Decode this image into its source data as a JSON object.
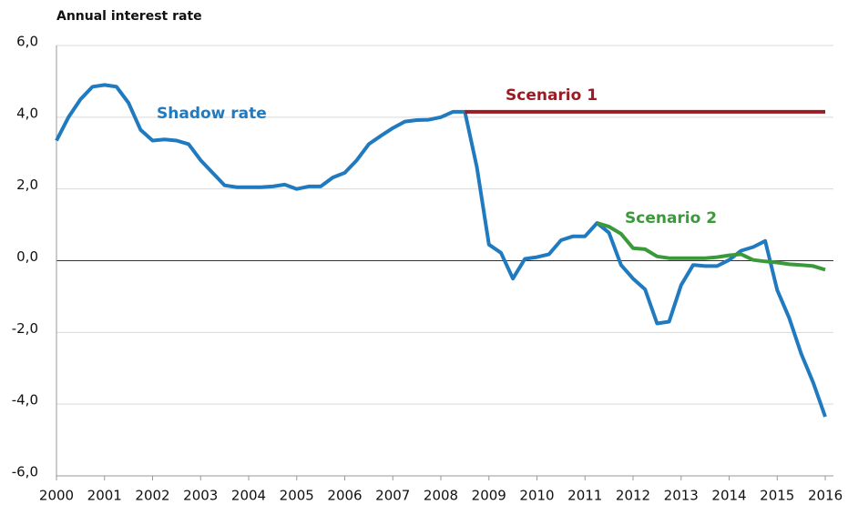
{
  "chart_data": {
    "type": "line",
    "title": "Annual interest rate",
    "x": [
      2000,
      2000.25,
      2000.5,
      2000.75,
      2001,
      2001.25,
      2001.5,
      2001.75,
      2002,
      2002.25,
      2002.5,
      2002.75,
      2003,
      2003.25,
      2003.5,
      2003.75,
      2004,
      2004.25,
      2004.5,
      2004.75,
      2005,
      2005.25,
      2005.5,
      2005.75,
      2006,
      2006.25,
      2006.5,
      2006.75,
      2007,
      2007.25,
      2007.5,
      2007.75,
      2008,
      2008.25,
      2008.5,
      2008.75,
      2009,
      2009.25,
      2009.5,
      2009.75,
      2010,
      2010.25,
      2010.5,
      2010.75,
      2011,
      2011.25,
      2011.5,
      2011.75,
      2012,
      2012.25,
      2012.5,
      2012.75,
      2013,
      2013.25,
      2013.5,
      2013.75,
      2014,
      2014.25,
      2014.5,
      2014.75,
      2015,
      2015.25,
      2015.5,
      2015.75,
      2016
    ],
    "series": [
      {
        "name": "Shadow rate",
        "color": "#1f7ac0",
        "values": [
          3.35,
          4.0,
          4.5,
          4.85,
          4.9,
          4.85,
          4.4,
          3.65,
          3.35,
          3.38,
          3.35,
          3.25,
          2.8,
          2.45,
          2.1,
          2.05,
          2.05,
          2.05,
          2.07,
          2.12,
          2.0,
          2.07,
          2.07,
          2.32,
          2.45,
          2.8,
          3.25,
          3.48,
          3.7,
          3.88,
          3.92,
          3.93,
          4.0,
          4.15,
          4.15,
          2.6,
          0.45,
          0.22,
          -0.5,
          0.05,
          0.1,
          0.18,
          0.57,
          0.68,
          0.68,
          1.05,
          0.78,
          -0.12,
          -0.5,
          -0.8,
          -1.75,
          -1.7,
          -0.68,
          -0.12,
          -0.15,
          -0.15,
          0.02,
          0.28,
          0.38,
          0.55,
          -0.82,
          -1.6,
          -2.6,
          -3.4,
          -4.35
        ]
      },
      {
        "name": "Scenario 1",
        "color": "#9b1b24",
        "values": [
          null,
          null,
          null,
          null,
          null,
          null,
          null,
          null,
          null,
          null,
          null,
          null,
          null,
          null,
          null,
          null,
          null,
          null,
          null,
          null,
          null,
          null,
          null,
          null,
          null,
          null,
          null,
          null,
          null,
          null,
          null,
          null,
          null,
          null,
          4.15,
          4.15,
          4.15,
          4.15,
          4.15,
          4.15,
          4.15,
          4.15,
          4.15,
          4.15,
          4.15,
          4.15,
          4.15,
          4.15,
          4.15,
          4.15,
          4.15,
          4.15,
          4.15,
          4.15,
          4.15,
          4.15,
          4.15,
          4.15,
          4.15,
          4.15,
          4.15,
          4.15,
          4.15,
          4.15,
          4.15
        ]
      },
      {
        "name": "Scenario 2",
        "color": "#3a9a3a",
        "values": [
          null,
          null,
          null,
          null,
          null,
          null,
          null,
          null,
          null,
          null,
          null,
          null,
          null,
          null,
          null,
          null,
          null,
          null,
          null,
          null,
          null,
          null,
          null,
          null,
          null,
          null,
          null,
          null,
          null,
          null,
          null,
          null,
          null,
          null,
          null,
          null,
          null,
          null,
          null,
          null,
          null,
          null,
          null,
          null,
          null,
          1.05,
          0.95,
          0.75,
          0.35,
          0.32,
          0.12,
          0.07,
          0.07,
          0.07,
          0.07,
          0.1,
          0.15,
          0.18,
          0.02,
          -0.02,
          -0.05,
          -0.1,
          -0.12,
          -0.15,
          -0.25
        ]
      }
    ],
    "xlim": [
      2000,
      2016.17
    ],
    "xticks": [
      2000,
      2001,
      2002,
      2003,
      2004,
      2005,
      2006,
      2007,
      2008,
      2009,
      2010,
      2011,
      2012,
      2013,
      2014,
      2015,
      2016
    ],
    "ylim": [
      -6,
      6
    ],
    "yticks": [
      {
        "value": -6,
        "label": "-6,0"
      },
      {
        "value": -4,
        "label": "-4,0"
      },
      {
        "value": -2,
        "label": "-2,0"
      },
      {
        "value": 0,
        "label": "0,0"
      },
      {
        "value": 2,
        "label": "2,0"
      },
      {
        "value": 4,
        "label": "4,0"
      },
      {
        "value": 6,
        "label": "6,0"
      }
    ],
    "grid": true
  }
}
